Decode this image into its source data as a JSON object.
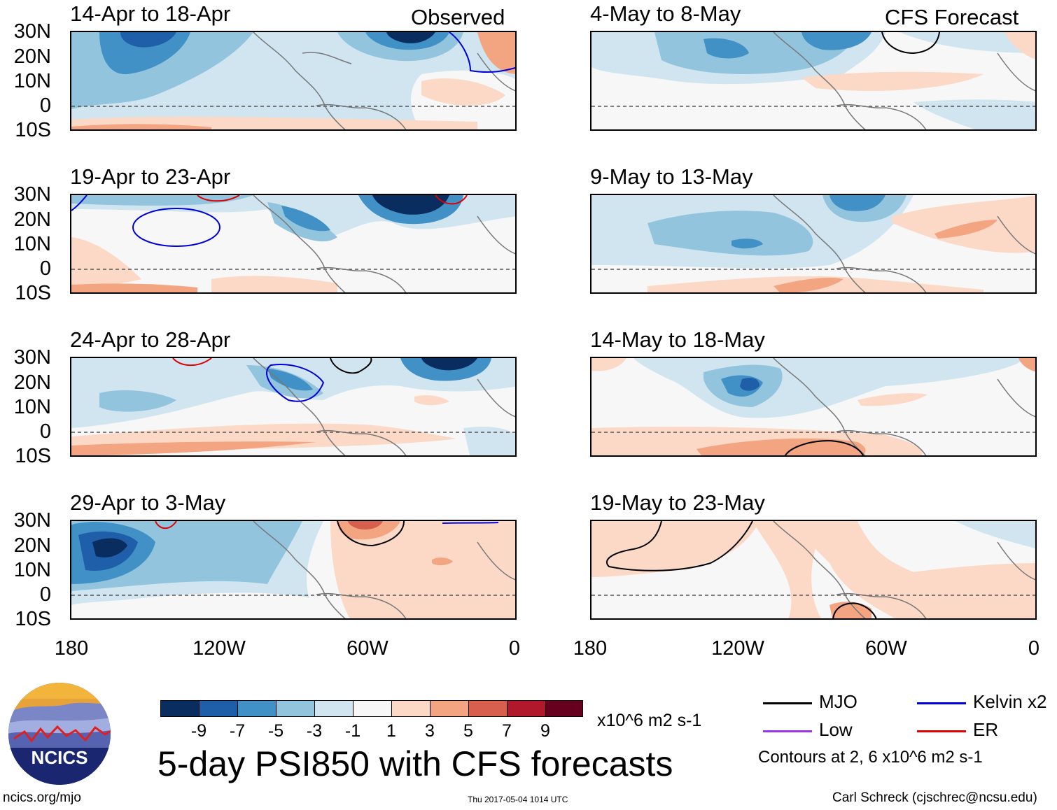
{
  "header": {
    "observed_label": "Observed",
    "forecast_label": "CFS Forecast"
  },
  "panels": [
    {
      "title": "14-Apr to 18-Apr",
      "type": "observed"
    },
    {
      "title": "19-Apr to 23-Apr",
      "type": "observed"
    },
    {
      "title": "24-Apr to 28-Apr",
      "type": "observed"
    },
    {
      "title": "29-Apr to 3-May",
      "type": "observed"
    },
    {
      "title": "4-May to 8-May",
      "type": "forecast"
    },
    {
      "title": "9-May to 13-May",
      "type": "forecast"
    },
    {
      "title": "14-May to 18-May",
      "type": "forecast"
    },
    {
      "title": "19-May to 23-May",
      "type": "forecast"
    }
  ],
  "axes": {
    "lat_labels": [
      "30N",
      "20N",
      "10N",
      "0",
      "10S"
    ],
    "lon_labels": [
      "180",
      "120W",
      "60W",
      "0"
    ]
  },
  "colorbar": {
    "ticks": [
      "-9",
      "-7",
      "-5",
      "-3",
      "-1",
      "1",
      "3",
      "5",
      "7",
      "9"
    ],
    "colors": [
      "#0a2d5f",
      "#1f5ea8",
      "#4191c6",
      "#92c4de",
      "#d1e5f0",
      "#f7f7f7",
      "#fbd9c6",
      "#f3a481",
      "#d6604d",
      "#b2182b",
      "#67001f"
    ],
    "units": "x10^6 m2 s-1"
  },
  "legend": {
    "items": [
      {
        "label": "MJO",
        "color": "#000000"
      },
      {
        "label": "Kelvin x2",
        "color": "#0000dd"
      },
      {
        "label": "Low",
        "color": "#9d36e0"
      },
      {
        "label": "ER",
        "color": "#e00000"
      }
    ],
    "contours_note": "Contours at 2, 6 x10^6 m2 s-1"
  },
  "title": "5-day PSI850 with CFS forecasts",
  "logo_text": "NCICS",
  "footer": {
    "url": "ncics.org/mjo",
    "timestamp": "Thu 2017-05-04 1014 UTC",
    "author": "Carl Schreck (cjschrec@ncsu.edu)"
  },
  "colors": {
    "dark_blue": "#0a2d5f",
    "mid_blue": "#4191c6",
    "light_blue": "#d1e5f0",
    "light_red": "#fbd9c6",
    "mid_red": "#f3a481",
    "dark_red": "#b2182b",
    "coast": "#777777"
  }
}
